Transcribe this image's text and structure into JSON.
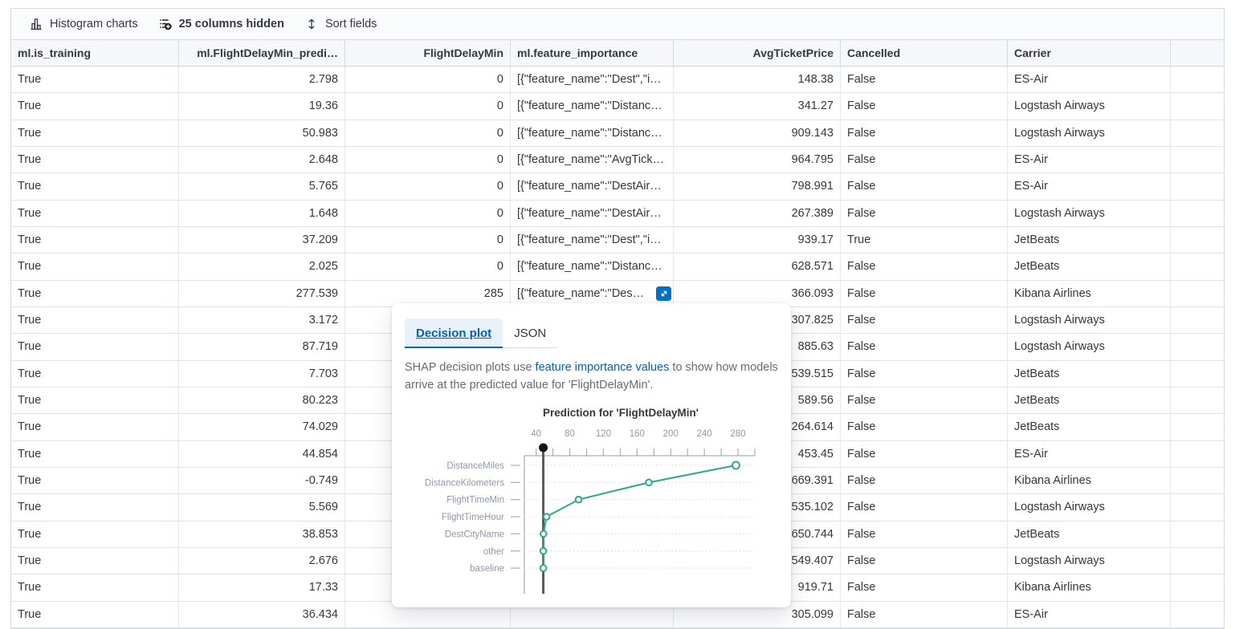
{
  "toolbar": {
    "histogram_label": "Histogram charts",
    "columns_hidden_label": "25 columns hidden",
    "sort_label": "Sort fields"
  },
  "table": {
    "columns": [
      {
        "id": "is_training",
        "label": "ml.is_training",
        "align": "left"
      },
      {
        "id": "predicted",
        "label": "ml.FlightDelayMin_predi…",
        "align": "right"
      },
      {
        "id": "flight_delay_min",
        "label": "FlightDelayMin",
        "align": "right"
      },
      {
        "id": "feature_importance",
        "label": "ml.feature_importance",
        "align": "left"
      },
      {
        "id": "avg_ticket_price",
        "label": "AvgTicketPrice",
        "align": "right"
      },
      {
        "id": "cancelled",
        "label": "Cancelled",
        "align": "left"
      },
      {
        "id": "carrier",
        "label": "Carrier",
        "align": "left"
      },
      {
        "id": "spacer",
        "label": "",
        "align": "left"
      }
    ],
    "rows": [
      {
        "is_training": "True",
        "predicted": "2.798",
        "flight_delay_min": "0",
        "feature_importance": "[{\"feature_name\":\"Dest\",\"i…",
        "avg_ticket_price": "148.38",
        "cancelled": "False",
        "carrier": "ES-Air"
      },
      {
        "is_training": "True",
        "predicted": "19.36",
        "flight_delay_min": "0",
        "feature_importance": "[{\"feature_name\":\"Distanc…",
        "avg_ticket_price": "341.27",
        "cancelled": "False",
        "carrier": "Logstash Airways"
      },
      {
        "is_training": "True",
        "predicted": "50.983",
        "flight_delay_min": "0",
        "feature_importance": "[{\"feature_name\":\"Distanc…",
        "avg_ticket_price": "909.143",
        "cancelled": "False",
        "carrier": "Logstash Airways"
      },
      {
        "is_training": "True",
        "predicted": "2.648",
        "flight_delay_min": "0",
        "feature_importance": "[{\"feature_name\":\"AvgTick…",
        "avg_ticket_price": "964.795",
        "cancelled": "False",
        "carrier": "ES-Air"
      },
      {
        "is_training": "True",
        "predicted": "5.765",
        "flight_delay_min": "0",
        "feature_importance": "[{\"feature_name\":\"DestAir…",
        "avg_ticket_price": "798.991",
        "cancelled": "False",
        "carrier": "ES-Air"
      },
      {
        "is_training": "True",
        "predicted": "1.648",
        "flight_delay_min": "0",
        "feature_importance": "[{\"feature_name\":\"DestAir…",
        "avg_ticket_price": "267.389",
        "cancelled": "False",
        "carrier": "Logstash Airways"
      },
      {
        "is_training": "True",
        "predicted": "37.209",
        "flight_delay_min": "0",
        "feature_importance": "[{\"feature_name\":\"Dest\",\"i…",
        "avg_ticket_price": "939.17",
        "cancelled": "True",
        "carrier": "JetBeats"
      },
      {
        "is_training": "True",
        "predicted": "2.025",
        "flight_delay_min": "0",
        "feature_importance": "[{\"feature_name\":\"Distanc…",
        "avg_ticket_price": "628.571",
        "cancelled": "False",
        "carrier": "JetBeats"
      },
      {
        "is_training": "True",
        "predicted": "277.539",
        "flight_delay_min": "285",
        "feature_importance": "[{\"feature_name\":\"Des…",
        "avg_ticket_price": "366.093",
        "cancelled": "False",
        "carrier": "Kibana Airlines",
        "has_expand_button": true
      },
      {
        "is_training": "True",
        "predicted": "3.172",
        "flight_delay_min": "",
        "feature_importance": "",
        "avg_ticket_price": "307.825",
        "cancelled": "False",
        "carrier": "Logstash Airways"
      },
      {
        "is_training": "True",
        "predicted": "87.719",
        "flight_delay_min": "",
        "feature_importance": "",
        "avg_ticket_price": "885.63",
        "cancelled": "False",
        "carrier": "Logstash Airways"
      },
      {
        "is_training": "True",
        "predicted": "7.703",
        "flight_delay_min": "",
        "feature_importance": "",
        "avg_ticket_price": "539.515",
        "cancelled": "False",
        "carrier": "JetBeats"
      },
      {
        "is_training": "True",
        "predicted": "80.223",
        "flight_delay_min": "",
        "feature_importance": "",
        "avg_ticket_price": "589.56",
        "cancelled": "False",
        "carrier": "JetBeats"
      },
      {
        "is_training": "True",
        "predicted": "74.029",
        "flight_delay_min": "",
        "feature_importance": "",
        "avg_ticket_price": "264.614",
        "cancelled": "False",
        "carrier": "JetBeats"
      },
      {
        "is_training": "True",
        "predicted": "44.854",
        "flight_delay_min": "",
        "feature_importance": "",
        "avg_ticket_price": "453.45",
        "cancelled": "False",
        "carrier": "ES-Air"
      },
      {
        "is_training": "True",
        "predicted": "-0.749",
        "flight_delay_min": "",
        "feature_importance": "",
        "avg_ticket_price": "669.391",
        "cancelled": "False",
        "carrier": "Kibana Airlines"
      },
      {
        "is_training": "True",
        "predicted": "5.569",
        "flight_delay_min": "",
        "feature_importance": "",
        "avg_ticket_price": "535.102",
        "cancelled": "False",
        "carrier": "Logstash Airways"
      },
      {
        "is_training": "True",
        "predicted": "38.853",
        "flight_delay_min": "",
        "feature_importance": "",
        "avg_ticket_price": "650.744",
        "cancelled": "False",
        "carrier": "JetBeats"
      },
      {
        "is_training": "True",
        "predicted": "2.676",
        "flight_delay_min": "",
        "feature_importance": "",
        "avg_ticket_price": "549.407",
        "cancelled": "False",
        "carrier": "Logstash Airways"
      },
      {
        "is_training": "True",
        "predicted": "17.33",
        "flight_delay_min": "",
        "feature_importance": "",
        "avg_ticket_price": "919.71",
        "cancelled": "False",
        "carrier": "Kibana Airlines"
      },
      {
        "is_training": "True",
        "predicted": "36.434",
        "flight_delay_min": "",
        "feature_importance": "",
        "avg_ticket_price": "305.099",
        "cancelled": "False",
        "carrier": "ES-Air"
      }
    ]
  },
  "popover": {
    "tabs": [
      {
        "label": "Decision plot",
        "selected": true
      },
      {
        "label": "JSON",
        "selected": false
      }
    ],
    "description": {
      "prefix": "SHAP decision plots use ",
      "link": "feature importance values",
      "suffix": " to show how models arrive at the predicted value for 'FlightDelayMin'."
    },
    "chart_data": {
      "type": "line",
      "title": "Prediction for 'FlightDelayMin'",
      "categories": [
        "DistanceMiles",
        "DistanceKilometers",
        "FlightTimeMin",
        "FlightTimeHour",
        "DestCityName",
        "other",
        "baseline"
      ],
      "values": [
        277.5,
        174,
        90.5,
        52.4,
        48.7,
        48.5,
        48.5
      ],
      "x_ticks": [
        40,
        80,
        120,
        160,
        200,
        240,
        280
      ],
      "xlim": [
        26,
        300
      ],
      "annotation_line_x": 48.5,
      "annotation_marker": "black-dot",
      "grid": "dotted",
      "legend": "none",
      "line_color": "#2DA88C",
      "annotation_color": "#545A63",
      "axis_color": "#A6AFBF",
      "label_color": "#8E99AD",
      "grid_color": "#D9DEE8",
      "title_color": "#343741"
    }
  },
  "colors": {
    "primary_blue": "#0061C4",
    "expand_button_blue": "#0071C2",
    "header_bg": "#F5F7FA",
    "border": "#D3DAE6"
  }
}
